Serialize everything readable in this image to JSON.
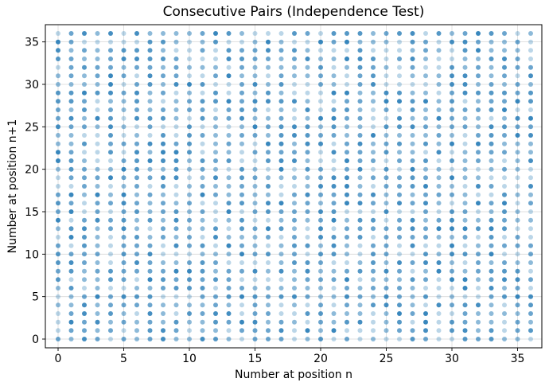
{
  "chart_data": {
    "type": "scatter",
    "title": "Consecutive Pairs (Independence Test)",
    "xlabel": "Number at position n",
    "ylabel": "Number at position n+1",
    "x_ticks": [
      0,
      5,
      10,
      15,
      20,
      25,
      30,
      35
    ],
    "y_ticks": [
      0,
      5,
      10,
      15,
      20,
      25,
      30,
      35
    ],
    "x_range": [
      0,
      36
    ],
    "y_range": [
      0,
      36
    ],
    "xlim": [
      -0.9,
      36.9
    ],
    "ylim": [
      -1.05,
      37.05
    ],
    "grid": true,
    "grid_color": "#d9d9d9",
    "legend": "none",
    "marker_color": "#1f77b4",
    "marker_base_alpha": 0.3,
    "marker_radius_px": 3,
    "points_description": "Every integer pair (n, n+1) from 0-36 on both axes is plotted; darkness of each dot encodes how often that consecutive pair occurred (semi-transparent markers stacked).",
    "point_grid": {
      "x_min": 0,
      "x_max": 36,
      "y_min": 0,
      "y_max": 36,
      "count": 1369
    },
    "stack_count_weights": {
      "1": 0.22,
      "2": 0.26,
      "3": 0.22,
      "4": 0.15,
      "5": 0.09,
      "6": 0.06
    },
    "render_seed": 42
  }
}
